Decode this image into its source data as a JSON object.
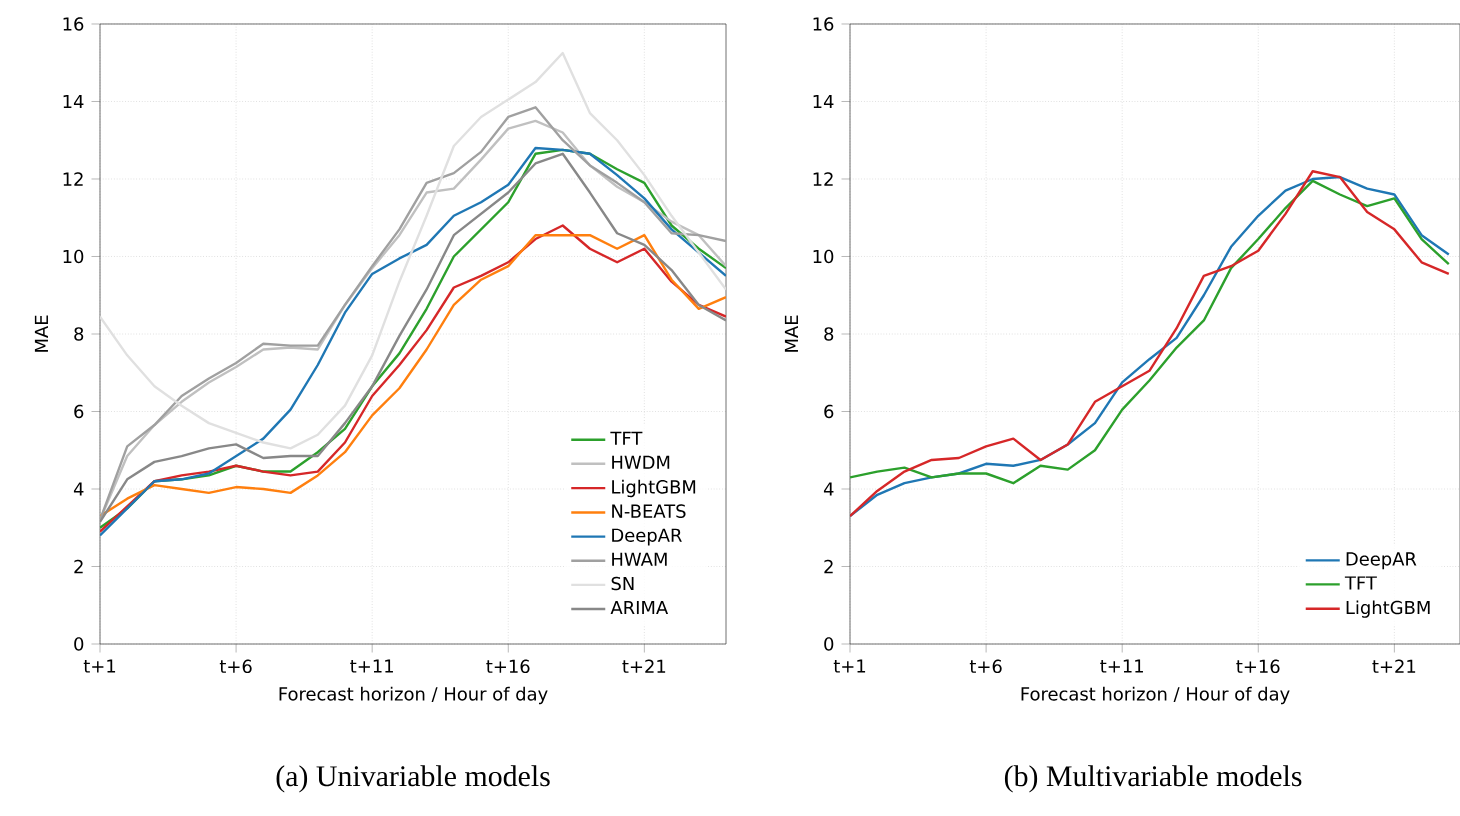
{
  "chart_data": [
    {
      "type": "line",
      "title": "(a) Univariable models",
      "xlabel": "Forecast horizon / Hour of day",
      "ylabel": "MAE",
      "categories": [
        "t+1",
        null,
        null,
        null,
        null,
        "t+6",
        null,
        null,
        null,
        null,
        "t+11",
        null,
        null,
        null,
        null,
        "t+16",
        null,
        null,
        null,
        null,
        "t+21",
        null,
        null,
        null
      ],
      "ylim": [
        0,
        16
      ],
      "yticks": [
        0,
        2,
        4,
        6,
        8,
        10,
        12,
        14,
        16
      ],
      "grid": true,
      "legend": "bottom right",
      "series": [
        {
          "name": "TFT",
          "color": "#2ca02c",
          "values": [
            3.0,
            3.5,
            4.2,
            4.25,
            4.35,
            4.6,
            4.45,
            4.45,
            4.95,
            5.55,
            6.65,
            7.5,
            8.65,
            10.0,
            10.7,
            11.4,
            12.65,
            12.75,
            12.65,
            12.25,
            11.9,
            10.8,
            10.2,
            9.7
          ]
        },
        {
          "name": "HWDM",
          "color": "#c0c0c0",
          "values": [
            3.2,
            4.85,
            5.65,
            6.25,
            6.75,
            7.15,
            7.6,
            7.65,
            7.6,
            8.75,
            9.7,
            10.55,
            11.65,
            11.75,
            12.5,
            13.3,
            13.5,
            13.2,
            12.35,
            11.8,
            11.4,
            10.9,
            10.55,
            9.75
          ]
        },
        {
          "name": "LightGBM",
          "color": "#d62728",
          "values": [
            2.9,
            3.55,
            4.2,
            4.35,
            4.45,
            4.6,
            4.45,
            4.35,
            4.45,
            5.2,
            6.4,
            7.2,
            8.1,
            9.2,
            9.5,
            9.85,
            10.45,
            10.8,
            10.2,
            9.85,
            10.2,
            9.35,
            8.75,
            8.45
          ]
        },
        {
          "name": "N-BEATS",
          "color": "#ff7f0e",
          "values": [
            3.3,
            3.75,
            4.1,
            4.0,
            3.9,
            4.05,
            4.0,
            3.9,
            4.35,
            4.95,
            5.9,
            6.6,
            7.6,
            8.75,
            9.4,
            9.75,
            10.55,
            10.55,
            10.55,
            10.2,
            10.55,
            9.4,
            8.65,
            8.95
          ]
        },
        {
          "name": "DeepAR",
          "color": "#1f77b4",
          "values": [
            2.8,
            3.5,
            4.2,
            4.25,
            4.4,
            4.85,
            5.3,
            6.05,
            7.2,
            8.55,
            9.55,
            9.95,
            10.3,
            11.05,
            11.4,
            11.85,
            12.8,
            12.75,
            12.65,
            12.1,
            11.5,
            10.7,
            10.1,
            9.5
          ]
        },
        {
          "name": "HWAM",
          "color": "#a0a0a0",
          "values": [
            3.2,
            5.1,
            5.65,
            6.4,
            6.85,
            7.25,
            7.75,
            7.7,
            7.7,
            8.75,
            9.75,
            10.7,
            11.9,
            12.15,
            12.7,
            13.6,
            13.85,
            13.0,
            12.35,
            11.9,
            11.4,
            10.6,
            10.55,
            10.4
          ]
        },
        {
          "name": "SN",
          "color": "#e0e0e0",
          "values": [
            8.45,
            7.45,
            6.65,
            6.15,
            5.7,
            5.45,
            5.2,
            5.05,
            5.4,
            6.15,
            7.45,
            9.35,
            11.05,
            12.85,
            13.6,
            14.05,
            14.5,
            15.25,
            13.7,
            13.0,
            12.1,
            11.05,
            10.1,
            9.15
          ]
        },
        {
          "name": "ARIMA",
          "color": "#888888",
          "values": [
            3.15,
            4.25,
            4.7,
            4.85,
            5.05,
            5.15,
            4.8,
            4.85,
            4.85,
            5.7,
            6.65,
            7.95,
            9.15,
            10.55,
            11.1,
            11.65,
            12.4,
            12.65,
            11.65,
            10.6,
            10.3,
            9.65,
            8.75,
            8.35
          ]
        }
      ]
    },
    {
      "type": "line",
      "title": "(b) Multivariable models",
      "xlabel": "Forecast horizon / Hour of day",
      "ylabel": "MAE",
      "categories": [
        "t+1",
        null,
        null,
        null,
        null,
        "t+6",
        null,
        null,
        null,
        null,
        "t+11",
        null,
        null,
        null,
        null,
        "t+16",
        null,
        null,
        null,
        null,
        "t+21",
        null,
        null
      ],
      "ylim": [
        0,
        16
      ],
      "yticks": [
        0,
        2,
        4,
        6,
        8,
        10,
        12,
        14,
        16
      ],
      "grid": true,
      "legend": "bottom right",
      "series": [
        {
          "name": "DeepAR",
          "color": "#1f77b4",
          "values": [
            3.3,
            3.85,
            4.15,
            4.3,
            4.4,
            4.65,
            4.6,
            4.75,
            5.15,
            5.7,
            6.75,
            7.35,
            7.9,
            9.0,
            10.25,
            11.05,
            11.7,
            12.0,
            12.05,
            11.75,
            11.6,
            10.55,
            10.05
          ]
        },
        {
          "name": "TFT",
          "color": "#2ca02c",
          "values": [
            4.3,
            4.45,
            4.55,
            4.3,
            4.4,
            4.4,
            4.15,
            4.6,
            4.5,
            5.0,
            6.05,
            6.8,
            7.65,
            8.35,
            9.7,
            10.45,
            11.25,
            11.95,
            11.6,
            11.3,
            11.5,
            10.45,
            9.8
          ]
        },
        {
          "name": "LightGBM",
          "color": "#d62728",
          "values": [
            3.3,
            3.95,
            4.45,
            4.75,
            4.8,
            5.1,
            5.3,
            4.75,
            5.15,
            6.25,
            6.65,
            7.05,
            8.15,
            9.5,
            9.75,
            10.15,
            11.1,
            12.2,
            12.05,
            11.15,
            10.7,
            9.85,
            9.55
          ]
        }
      ]
    }
  ]
}
